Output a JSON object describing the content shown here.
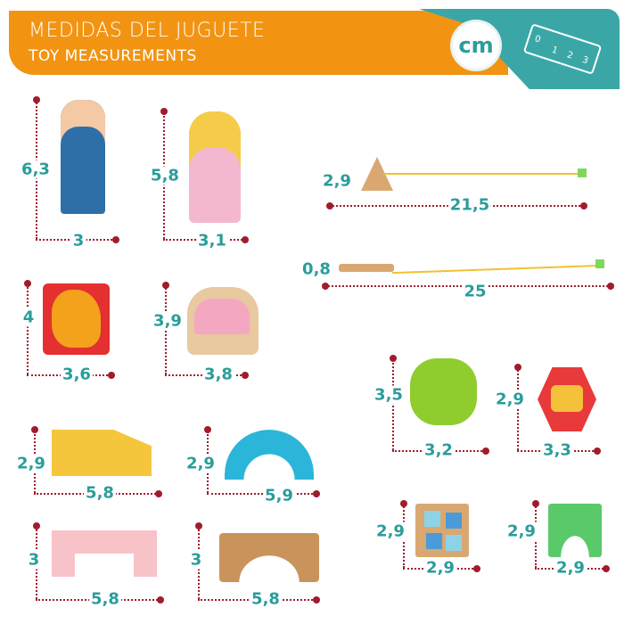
{
  "header": {
    "title": "MEDIDAS DEL JUGUETE",
    "subtitle": "TOY MEASUREMENTS",
    "unit_badge": "cm",
    "ruler_marks": [
      "0",
      "1",
      "2",
      "3"
    ]
  },
  "colors": {
    "orange": "#f29412",
    "teal": "#3aa7a6",
    "label": "#2a9d9a",
    "dots": "#a01c2c"
  },
  "items": [
    {
      "name": "prince",
      "height": "6,3",
      "width": "3"
    },
    {
      "name": "princess",
      "height": "5,8",
      "width": "3,1"
    },
    {
      "name": "triangle-fishing-rod",
      "height": "2,9",
      "width": "21,5"
    },
    {
      "name": "stick-fishing-rod",
      "height": "0,8",
      "width": "25"
    },
    {
      "name": "dragon",
      "height": "4",
      "width": "3,6"
    },
    {
      "name": "carriage",
      "height": "3,9",
      "width": "3,8"
    },
    {
      "name": "flower",
      "height": "3,5",
      "width": "3,2"
    },
    {
      "name": "hexagon-window",
      "height": "2,9",
      "width": "3,3"
    },
    {
      "name": "yellow-block",
      "height": "2,9",
      "width": "5,8"
    },
    {
      "name": "rainbow-arch",
      "height": "2,9",
      "width": "5,9"
    },
    {
      "name": "pink-bridge",
      "height": "3",
      "width": "5,8"
    },
    {
      "name": "wood-bridge",
      "height": "3",
      "width": "5,8"
    },
    {
      "name": "square-window",
      "height": "2,9",
      "width": "2,9"
    },
    {
      "name": "green-arch",
      "height": "2,9",
      "width": "2,9"
    }
  ]
}
